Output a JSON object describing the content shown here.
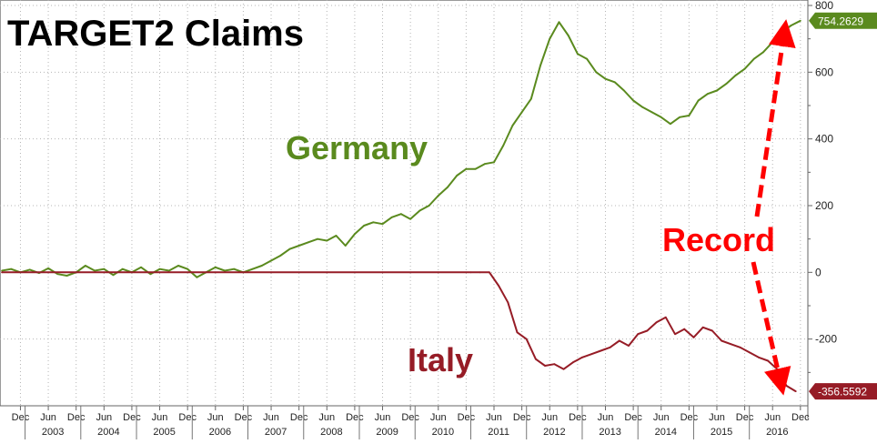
{
  "chart_data": {
    "type": "line",
    "title": "TARGET2 Claims",
    "ylim": [
      -400,
      800
    ],
    "y_ticks": [
      "800",
      "600",
      "400",
      "200",
      "0",
      "-200"
    ],
    "y_tick_values": [
      800,
      600,
      400,
      200,
      0,
      -200
    ],
    "x_month_labels": [
      "Dec",
      "Jun",
      "Dec",
      "Jun",
      "Dec",
      "Jun",
      "Dec",
      "Jun",
      "Dec",
      "Jun",
      "Dec",
      "Jun",
      "Dec",
      "Jun",
      "Dec",
      "Jun",
      "Dec",
      "Jun",
      "Dec",
      "Jun",
      "Dec",
      "Jun",
      "Dec",
      "Jun",
      "Dec",
      "Jun",
      "Dec",
      "Jun",
      "Dec"
    ],
    "x_month_dates": [
      "2002-12",
      "2003-06",
      "2003-12",
      "2004-06",
      "2004-12",
      "2005-06",
      "2005-12",
      "2006-06",
      "2006-12",
      "2007-06",
      "2007-12",
      "2008-06",
      "2008-12",
      "2009-06",
      "2009-12",
      "2010-06",
      "2010-12",
      "2011-06",
      "2011-12",
      "2012-06",
      "2012-12",
      "2013-06",
      "2013-12",
      "2014-06",
      "2014-12",
      "2015-06",
      "2015-12",
      "2016-06",
      "2016-12"
    ],
    "x_year_labels": [
      "2003",
      "2004",
      "2005",
      "2006",
      "2007",
      "2008",
      "2009",
      "2010",
      "2011",
      "2012",
      "2013",
      "2014",
      "2015",
      "2016"
    ],
    "x_year_dates": [
      "2003-01",
      "2004-01",
      "2005-01",
      "2006-01",
      "2007-01",
      "2008-01",
      "2009-01",
      "2010-01",
      "2011-01",
      "2012-01",
      "2013-01",
      "2014-01",
      "2015-01",
      "2016-01"
    ],
    "grid": true,
    "colors": {
      "germany": "#5a8a1e",
      "italy": "#961c26",
      "record": "#ff0000",
      "title": "#000000"
    },
    "series": [
      {
        "name": "Germany",
        "last_value_label": "754.2629",
        "points": [
          [
            "2002-08",
            5
          ],
          [
            "2002-10",
            10
          ],
          [
            "2002-12",
            0
          ],
          [
            "2003-02",
            8
          ],
          [
            "2003-04",
            -2
          ],
          [
            "2003-06",
            12
          ],
          [
            "2003-08",
            -5
          ],
          [
            "2003-10",
            -10
          ],
          [
            "2003-12",
            0
          ],
          [
            "2004-02",
            20
          ],
          [
            "2004-04",
            5
          ],
          [
            "2004-06",
            10
          ],
          [
            "2004-08",
            -8
          ],
          [
            "2004-10",
            10
          ],
          [
            "2004-12",
            0
          ],
          [
            "2005-02",
            15
          ],
          [
            "2005-04",
            -5
          ],
          [
            "2005-06",
            10
          ],
          [
            "2005-08",
            5
          ],
          [
            "2005-10",
            20
          ],
          [
            "2005-12",
            10
          ],
          [
            "2006-02",
            -15
          ],
          [
            "2006-04",
            0
          ],
          [
            "2006-06",
            15
          ],
          [
            "2006-08",
            5
          ],
          [
            "2006-10",
            10
          ],
          [
            "2006-12",
            0
          ],
          [
            "2007-02",
            10
          ],
          [
            "2007-04",
            20
          ],
          [
            "2007-06",
            35
          ],
          [
            "2007-08",
            50
          ],
          [
            "2007-10",
            70
          ],
          [
            "2007-12",
            80
          ],
          [
            "2008-02",
            90
          ],
          [
            "2008-04",
            100
          ],
          [
            "2008-06",
            95
          ],
          [
            "2008-08",
            110
          ],
          [
            "2008-10",
            80
          ],
          [
            "2008-12",
            115
          ],
          [
            "2009-02",
            140
          ],
          [
            "2009-04",
            150
          ],
          [
            "2009-06",
            145
          ],
          [
            "2009-08",
            165
          ],
          [
            "2009-10",
            175
          ],
          [
            "2009-12",
            160
          ],
          [
            "2010-02",
            185
          ],
          [
            "2010-04",
            200
          ],
          [
            "2010-06",
            230
          ],
          [
            "2010-08",
            255
          ],
          [
            "2010-10",
            290
          ],
          [
            "2010-12",
            310
          ],
          [
            "2011-02",
            310
          ],
          [
            "2011-04",
            325
          ],
          [
            "2011-06",
            330
          ],
          [
            "2011-08",
            380
          ],
          [
            "2011-10",
            440
          ],
          [
            "2011-12",
            480
          ],
          [
            "2012-02",
            520
          ],
          [
            "2012-04",
            620
          ],
          [
            "2012-06",
            700
          ],
          [
            "2012-08",
            750
          ],
          [
            "2012-10",
            710
          ],
          [
            "2012-12",
            655
          ],
          [
            "2013-02",
            640
          ],
          [
            "2013-04",
            600
          ],
          [
            "2013-06",
            580
          ],
          [
            "2013-08",
            570
          ],
          [
            "2013-10",
            545
          ],
          [
            "2013-12",
            515
          ],
          [
            "2014-02",
            495
          ],
          [
            "2014-04",
            480
          ],
          [
            "2014-06",
            465
          ],
          [
            "2014-08",
            445
          ],
          [
            "2014-10",
            465
          ],
          [
            "2014-12",
            470
          ],
          [
            "2015-02",
            515
          ],
          [
            "2015-04",
            535
          ],
          [
            "2015-06",
            545
          ],
          [
            "2015-08",
            565
          ],
          [
            "2015-10",
            590
          ],
          [
            "2015-12",
            610
          ],
          [
            "2016-02",
            640
          ],
          [
            "2016-04",
            660
          ],
          [
            "2016-06",
            690
          ],
          [
            "2016-08",
            720
          ],
          [
            "2016-10",
            740
          ],
          [
            "2016-12",
            754.2629
          ]
        ]
      },
      {
        "name": "Italy",
        "last_value_label": "-356.5592",
        "points": [
          [
            "2002-08",
            0
          ],
          [
            "2003-06",
            0
          ],
          [
            "2004-06",
            0
          ],
          [
            "2005-06",
            0
          ],
          [
            "2006-06",
            0
          ],
          [
            "2007-06",
            0
          ],
          [
            "2008-06",
            0
          ],
          [
            "2009-06",
            0
          ],
          [
            "2010-06",
            0
          ],
          [
            "2011-01",
            0
          ],
          [
            "2011-03",
            0
          ],
          [
            "2011-05",
            0
          ],
          [
            "2011-07",
            -40
          ],
          [
            "2011-09",
            -90
          ],
          [
            "2011-11",
            -180
          ],
          [
            "2012-01",
            -200
          ],
          [
            "2012-03",
            -260
          ],
          [
            "2012-05",
            -280
          ],
          [
            "2012-07",
            -275
          ],
          [
            "2012-09",
            -290
          ],
          [
            "2012-11",
            -270
          ],
          [
            "2013-01",
            -255
          ],
          [
            "2013-03",
            -245
          ],
          [
            "2013-05",
            -235
          ],
          [
            "2013-07",
            -225
          ],
          [
            "2013-09",
            -205
          ],
          [
            "2013-11",
            -220
          ],
          [
            "2014-01",
            -185
          ],
          [
            "2014-03",
            -175
          ],
          [
            "2014-05",
            -150
          ],
          [
            "2014-07",
            -135
          ],
          [
            "2014-09",
            -185
          ],
          [
            "2014-11",
            -170
          ],
          [
            "2015-01",
            -195
          ],
          [
            "2015-03",
            -165
          ],
          [
            "2015-05",
            -175
          ],
          [
            "2015-07",
            -205
          ],
          [
            "2015-09",
            -215
          ],
          [
            "2015-11",
            -225
          ],
          [
            "2016-01",
            -240
          ],
          [
            "2016-03",
            -255
          ],
          [
            "2016-05",
            -265
          ],
          [
            "2016-07",
            -290
          ],
          [
            "2016-09",
            -340
          ],
          [
            "2016-11",
            -356.5592
          ]
        ]
      }
    ],
    "annotations": [
      {
        "name": "germany-label",
        "text": "Germany"
      },
      {
        "name": "italy-label",
        "text": "Italy"
      },
      {
        "name": "record-label",
        "text": "Record"
      }
    ]
  }
}
